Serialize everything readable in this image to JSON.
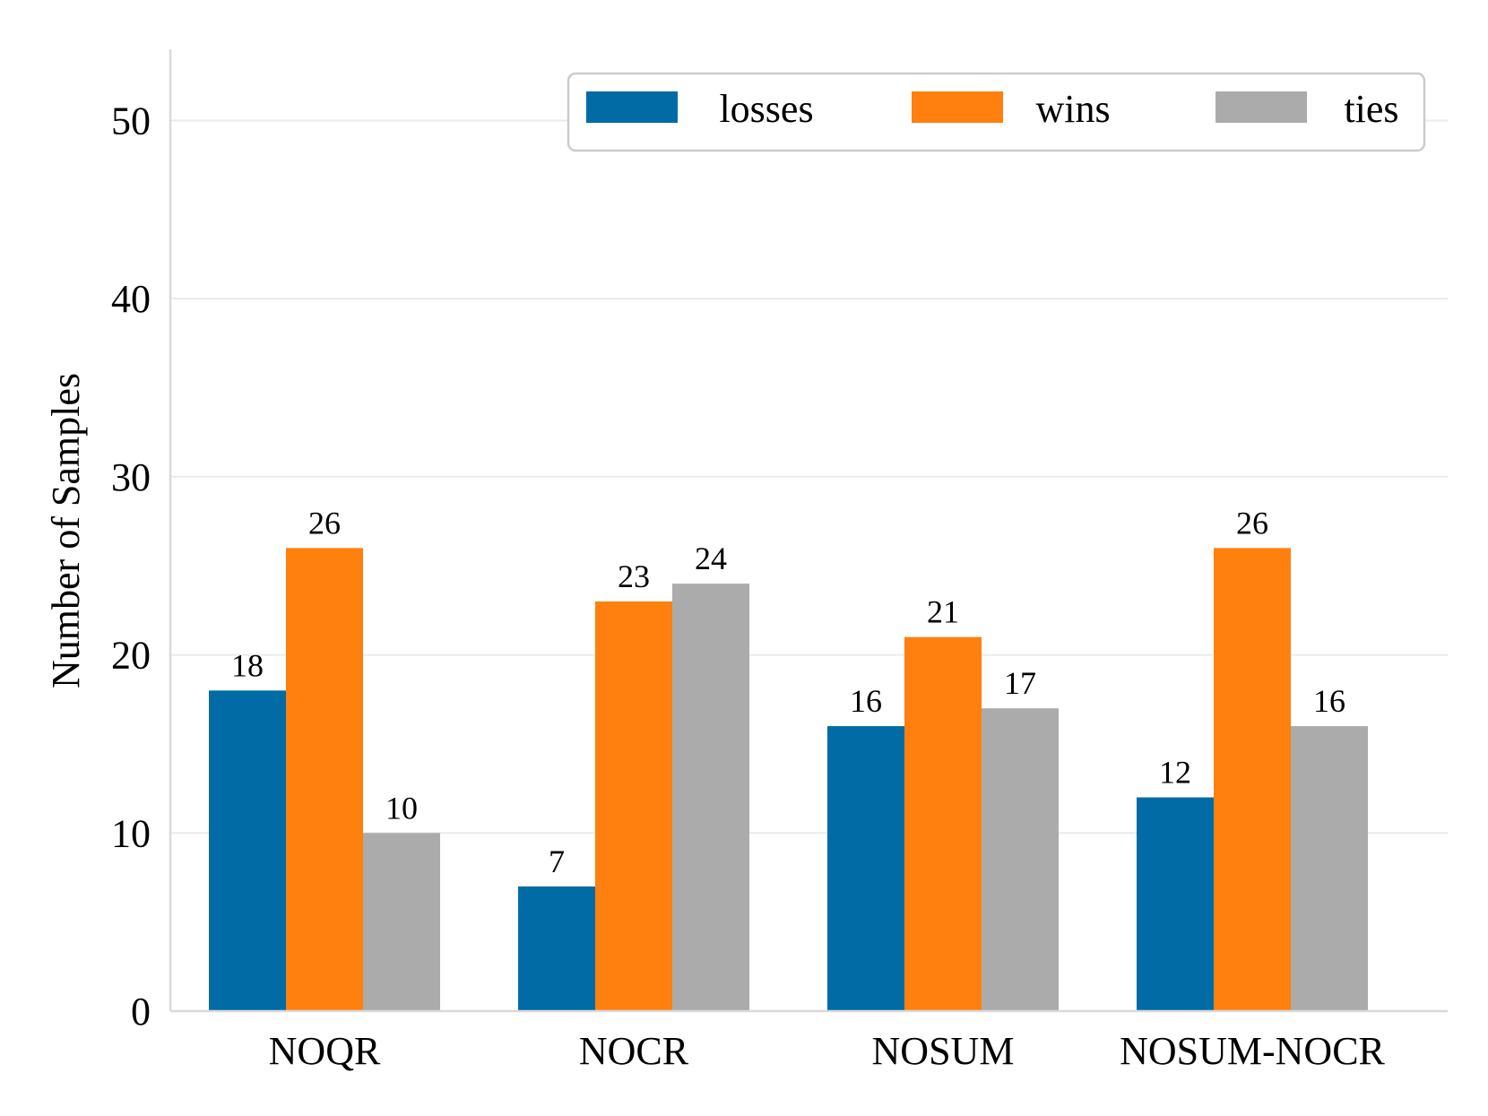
{
  "chart_data": {
    "type": "bar",
    "title": "",
    "xlabel": "",
    "ylabel": "Number of Samples",
    "ylim": [
      0,
      54
    ],
    "yticks": [
      0,
      10,
      20,
      30,
      40,
      50
    ],
    "grid": "horizontal",
    "legend_position": "top-right",
    "categories": [
      "NOQR",
      "NOCR",
      "NOSUM",
      "NOSUM-NOCR"
    ],
    "series": [
      {
        "name": "losses",
        "color": "#006ba4",
        "values": [
          18,
          7,
          16,
          12
        ]
      },
      {
        "name": "wins",
        "color": "#ff800e",
        "values": [
          26,
          23,
          21,
          26
        ]
      },
      {
        "name": "ties",
        "color": "#ababab",
        "values": [
          10,
          24,
          17,
          16
        ]
      }
    ]
  }
}
